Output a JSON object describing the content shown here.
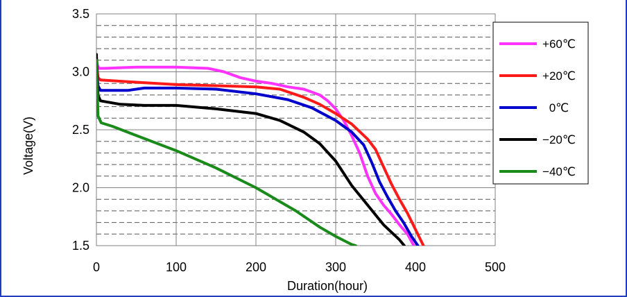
{
  "chart_data": {
    "type": "line",
    "title": "",
    "xlabel": "Duration(hour)",
    "ylabel": "Voltage(V)",
    "xlim": [
      0,
      500
    ],
    "ylim": [
      1.5,
      3.5
    ],
    "x_ticks": [
      0,
      100,
      200,
      300,
      400,
      500
    ],
    "y_ticks": [
      1.5,
      2.0,
      2.5,
      3.0,
      3.5
    ],
    "x_tick_labels": [
      "0",
      "100",
      "200",
      "300",
      "400",
      "500"
    ],
    "y_tick_labels": [
      "1.5",
      "2.0",
      "2.5",
      "3.0",
      "3.5"
    ],
    "grid": {
      "major": "solid",
      "minor_y": "dashed",
      "minor_y_step": 0.1
    },
    "legend_position": "top-right",
    "series": [
      {
        "name": "+60℃",
        "color": "#ff33ff",
        "points": [
          [
            0,
            3.12
          ],
          [
            1,
            3.06
          ],
          [
            3,
            3.03
          ],
          [
            10,
            3.03
          ],
          [
            50,
            3.04
          ],
          [
            100,
            3.04
          ],
          [
            140,
            3.03
          ],
          [
            160,
            3.0
          ],
          [
            180,
            2.95
          ],
          [
            200,
            2.92
          ],
          [
            220,
            2.9
          ],
          [
            240,
            2.87
          ],
          [
            260,
            2.85
          ],
          [
            280,
            2.8
          ],
          [
            290,
            2.75
          ],
          [
            300,
            2.68
          ],
          [
            310,
            2.58
          ],
          [
            320,
            2.45
          ],
          [
            330,
            2.3
          ],
          [
            340,
            2.1
          ],
          [
            350,
            1.95
          ],
          [
            360,
            1.85
          ],
          [
            370,
            1.77
          ],
          [
            380,
            1.68
          ],
          [
            390,
            1.6
          ],
          [
            398,
            1.5
          ]
        ]
      },
      {
        "name": "+20℃",
        "color": "#ff1a1a",
        "points": [
          [
            0,
            3.08
          ],
          [
            2,
            2.95
          ],
          [
            5,
            2.93
          ],
          [
            50,
            2.91
          ],
          [
            100,
            2.89
          ],
          [
            150,
            2.88
          ],
          [
            200,
            2.87
          ],
          [
            230,
            2.85
          ],
          [
            260,
            2.78
          ],
          [
            280,
            2.72
          ],
          [
            300,
            2.64
          ],
          [
            320,
            2.55
          ],
          [
            340,
            2.42
          ],
          [
            350,
            2.33
          ],
          [
            360,
            2.18
          ],
          [
            370,
            2.03
          ],
          [
            380,
            1.9
          ],
          [
            390,
            1.78
          ],
          [
            400,
            1.64
          ],
          [
            410,
            1.5
          ]
        ]
      },
      {
        "name": "0℃",
        "color": "#0000cc",
        "points": [
          [
            0,
            3.05
          ],
          [
            2,
            2.88
          ],
          [
            5,
            2.84
          ],
          [
            40,
            2.84
          ],
          [
            60,
            2.86
          ],
          [
            100,
            2.86
          ],
          [
            150,
            2.85
          ],
          [
            200,
            2.81
          ],
          [
            240,
            2.76
          ],
          [
            270,
            2.69
          ],
          [
            300,
            2.58
          ],
          [
            320,
            2.48
          ],
          [
            335,
            2.37
          ],
          [
            345,
            2.22
          ],
          [
            355,
            2.05
          ],
          [
            365,
            1.92
          ],
          [
            375,
            1.8
          ],
          [
            385,
            1.7
          ],
          [
            395,
            1.58
          ],
          [
            403,
            1.5
          ]
        ]
      },
      {
        "name": "−20℃",
        "color": "#000000",
        "points": [
          [
            0,
            3.15
          ],
          [
            2,
            2.8
          ],
          [
            5,
            2.75
          ],
          [
            30,
            2.72
          ],
          [
            60,
            2.71
          ],
          [
            100,
            2.71
          ],
          [
            150,
            2.68
          ],
          [
            200,
            2.64
          ],
          [
            230,
            2.58
          ],
          [
            260,
            2.48
          ],
          [
            280,
            2.38
          ],
          [
            300,
            2.23
          ],
          [
            320,
            2.02
          ],
          [
            340,
            1.85
          ],
          [
            360,
            1.68
          ],
          [
            380,
            1.55
          ],
          [
            386,
            1.5
          ]
        ]
      },
      {
        "name": "−40℃",
        "color": "#1a8a1a",
        "points": [
          [
            0,
            3.1
          ],
          [
            2,
            2.62
          ],
          [
            6,
            2.56
          ],
          [
            20,
            2.53
          ],
          [
            50,
            2.45
          ],
          [
            100,
            2.32
          ],
          [
            150,
            2.17
          ],
          [
            200,
            2.0
          ],
          [
            250,
            1.8
          ],
          [
            280,
            1.66
          ],
          [
            300,
            1.58
          ],
          [
            320,
            1.51
          ],
          [
            325,
            1.5
          ]
        ]
      }
    ]
  }
}
